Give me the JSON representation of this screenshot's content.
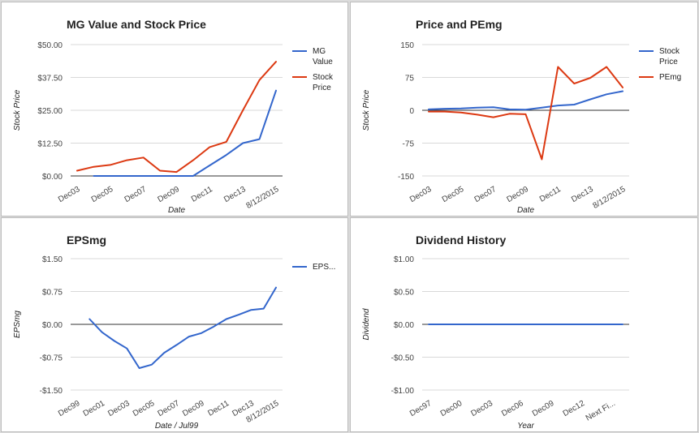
{
  "colors": {
    "blue": "#3366cc",
    "red": "#dc3912"
  },
  "chart_data": [
    {
      "type": "line",
      "title": "MG Value and Stock Price",
      "xlabel": "Date",
      "ylabel": "Stock Price",
      "ylim": [
        0,
        50
      ],
      "yticks": [
        0,
        12.5,
        25,
        37.5,
        50
      ],
      "yticklabels": [
        "$0.00",
        "$12.50",
        "$25.00",
        "$37.50",
        "$50.00"
      ],
      "xcount": 13,
      "xticklabels": [
        {
          "i": 0,
          "label": "Dec03"
        },
        {
          "i": 2,
          "label": "Dec05"
        },
        {
          "i": 4,
          "label": "Dec07"
        },
        {
          "i": 6,
          "label": "Dec09"
        },
        {
          "i": 8,
          "label": "Dec11"
        },
        {
          "i": 10,
          "label": "Dec13"
        },
        {
          "i": 12,
          "label": "8/12/2015"
        }
      ],
      "grid": true,
      "legend_position": "right",
      "series": [
        {
          "name": "MG Value",
          "color": "#3366cc",
          "values": [
            null,
            0,
            0,
            0,
            0,
            0,
            0,
            0,
            4,
            8,
            12.5,
            14,
            32.5
          ]
        },
        {
          "name": "Stock Price",
          "color": "#dc3912",
          "values": [
            2,
            3.5,
            4.2,
            6,
            7,
            2,
            1.5,
            6,
            11,
            13,
            25,
            36.5,
            43.5
          ]
        }
      ]
    },
    {
      "type": "line",
      "title": "Price and PEmg",
      "xlabel": "Date",
      "ylabel": "Stock Price",
      "ylim": [
        -150,
        150
      ],
      "yticks": [
        -150,
        -75,
        0,
        75,
        150
      ],
      "yticklabels": [
        "-150",
        "-75",
        "0",
        "75",
        "150"
      ],
      "xcount": 13,
      "xticklabels": [
        {
          "i": 0,
          "label": "Dec03"
        },
        {
          "i": 2,
          "label": "Dec05"
        },
        {
          "i": 4,
          "label": "Dec07"
        },
        {
          "i": 6,
          "label": "Dec09"
        },
        {
          "i": 8,
          "label": "Dec11"
        },
        {
          "i": 10,
          "label": "Dec13"
        },
        {
          "i": 12,
          "label": "8/12/2015"
        }
      ],
      "grid": true,
      "legend_position": "right",
      "series": [
        {
          "name": "Stock Price",
          "color": "#3366cc",
          "values": [
            2,
            3.5,
            4.2,
            6,
            7,
            2,
            1.5,
            6,
            11,
            13,
            25,
            36.5,
            43.5
          ]
        },
        {
          "name": "PEmg",
          "color": "#dc3912",
          "values": [
            -3,
            -3,
            -5,
            -10,
            -16,
            -8,
            -9,
            -112,
            99,
            61,
            74,
            99,
            52
          ]
        }
      ]
    },
    {
      "type": "line",
      "title": "EPSmg",
      "xlabel": "Date / Jul99",
      "ylabel": "EPSmg",
      "ylim": [
        -1.5,
        1.5
      ],
      "yticks": [
        -1.5,
        -0.75,
        0,
        0.75,
        1.5
      ],
      "yticklabels": [
        "-$1.50",
        "-$0.75",
        "$0.00",
        "$0.75",
        "$1.50"
      ],
      "xcount": 17,
      "xticklabels": [
        {
          "i": 0,
          "label": "Dec99"
        },
        {
          "i": 2,
          "label": "Dec01"
        },
        {
          "i": 4,
          "label": "Dec03"
        },
        {
          "i": 6,
          "label": "Dec05"
        },
        {
          "i": 8,
          "label": "Dec07"
        },
        {
          "i": 10,
          "label": "Dec09"
        },
        {
          "i": 12,
          "label": "Dec11"
        },
        {
          "i": 14,
          "label": "Dec13"
        },
        {
          "i": 16,
          "label": "8/12/2015"
        }
      ],
      "grid": true,
      "legend_position": "right",
      "series": [
        {
          "name": "EPS...",
          "color": "#3366cc",
          "values": [
            null,
            0.12,
            -0.18,
            -0.38,
            -0.55,
            -1.0,
            -0.92,
            -0.65,
            -0.47,
            -0.28,
            -0.2,
            -0.05,
            0.12,
            0.22,
            0.33,
            0.36,
            0.84
          ]
        }
      ]
    },
    {
      "type": "line",
      "title": "Dividend History",
      "xlabel": "Year",
      "ylabel": "Dividend",
      "ylim": [
        -1,
        1
      ],
      "yticks": [
        -1,
        -0.5,
        0,
        0.5,
        1
      ],
      "yticklabels": [
        "-$1.00",
        "-$0.50",
        "$0.00",
        "$0.50",
        "$1.00"
      ],
      "xcount": 20,
      "xticklabels": [
        {
          "i": 0,
          "label": "Dec97"
        },
        {
          "i": 3,
          "label": "Dec00"
        },
        {
          "i": 6,
          "label": "Dec03"
        },
        {
          "i": 9,
          "label": "Dec06"
        },
        {
          "i": 12,
          "label": "Dec09"
        },
        {
          "i": 15,
          "label": "Dec12"
        },
        {
          "i": 18,
          "label": "Next Fi..."
        }
      ],
      "grid": true,
      "legend_position": "none",
      "series": [
        {
          "color": "#3366cc",
          "values": [
            0,
            0,
            0,
            0,
            0,
            0,
            0,
            0,
            0,
            0,
            0,
            0,
            0,
            0,
            0,
            0,
            0,
            0,
            0,
            0
          ]
        }
      ]
    }
  ]
}
